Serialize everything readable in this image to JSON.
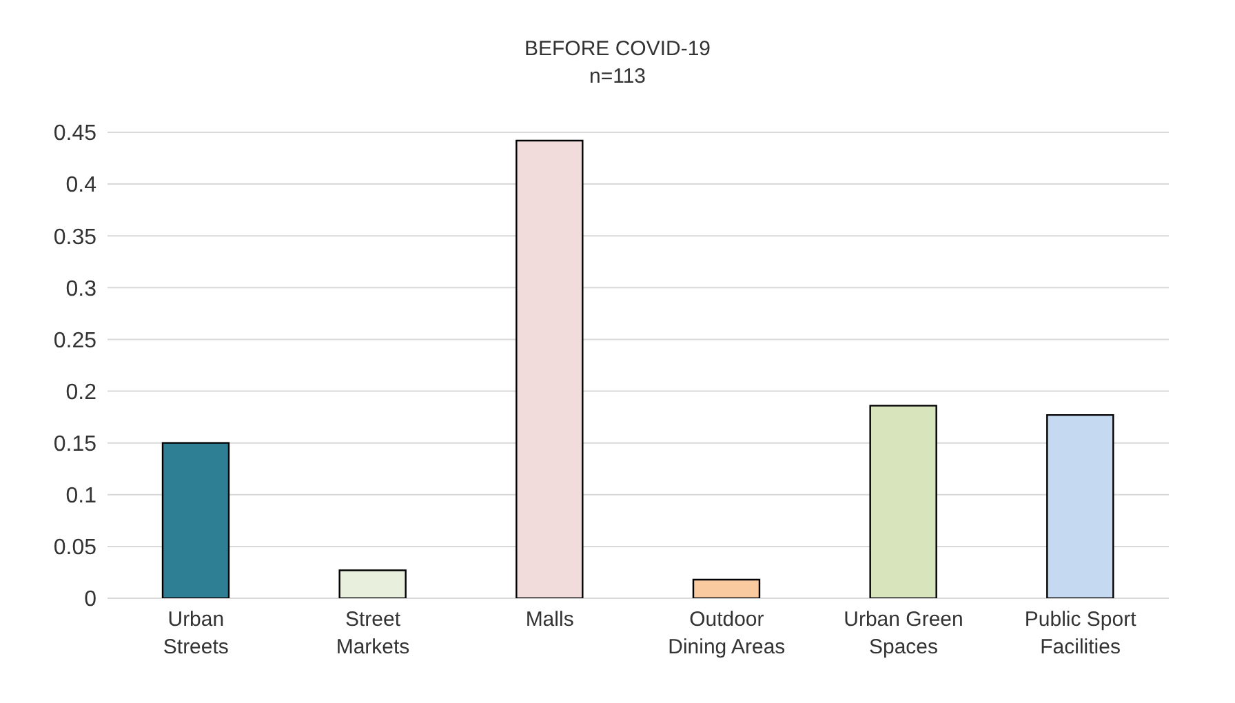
{
  "chart_data": {
    "type": "bar",
    "title": "BEFORE COVID-19",
    "subtitle": "n=113",
    "categories": [
      "Urban Streets",
      "Street Markets",
      "Malls",
      "Outdoor Dining Areas",
      "Urban Green Spaces",
      "Public Sport Facilities"
    ],
    "values": [
      0.15,
      0.027,
      0.442,
      0.018,
      0.186,
      0.177
    ],
    "colors": [
      "#2e7f94",
      "#e8efdc",
      "#f2dcdb",
      "#f9c9a0",
      "#d7e4bc",
      "#c5d9f1"
    ],
    "ylim": [
      0,
      0.45
    ],
    "yticks": [
      0,
      0.05,
      0.1,
      0.15,
      0.2,
      0.25,
      0.3,
      0.35,
      0.4,
      0.45
    ],
    "grid": "y"
  }
}
